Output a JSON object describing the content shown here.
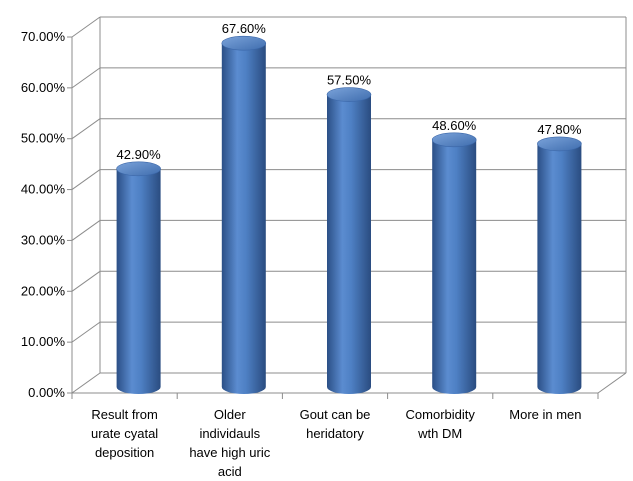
{
  "chart_data": {
    "type": "bar",
    "style": "3d-cylinder",
    "categories": [
      "Result from urate cyatal deposition",
      "Older individauls have high uric acid",
      "Gout can be heridatory",
      "Comorbidity wth DM",
      "More in men"
    ],
    "category_lines": [
      [
        "Result from",
        "urate cyatal",
        "deposition"
      ],
      [
        "Older",
        "individauls",
        "have high uric",
        "acid"
      ],
      [
        "Gout can be",
        "heridatory"
      ],
      [
        "Comorbidity",
        "wth DM"
      ],
      [
        "More in men"
      ]
    ],
    "values": [
      42.9,
      67.6,
      57.5,
      48.6,
      47.8
    ],
    "data_labels": [
      "42.90%",
      "67.60%",
      "57.50%",
      "48.60%",
      "47.80%"
    ],
    "y_ticks": [
      "0.00%",
      "10.00%",
      "20.00%",
      "30.00%",
      "40.00%",
      "50.00%",
      "60.00%",
      "70.00%"
    ],
    "ylim": [
      0,
      70
    ],
    "grid": true,
    "legend": "none",
    "bar_color": "#4F81BD"
  }
}
